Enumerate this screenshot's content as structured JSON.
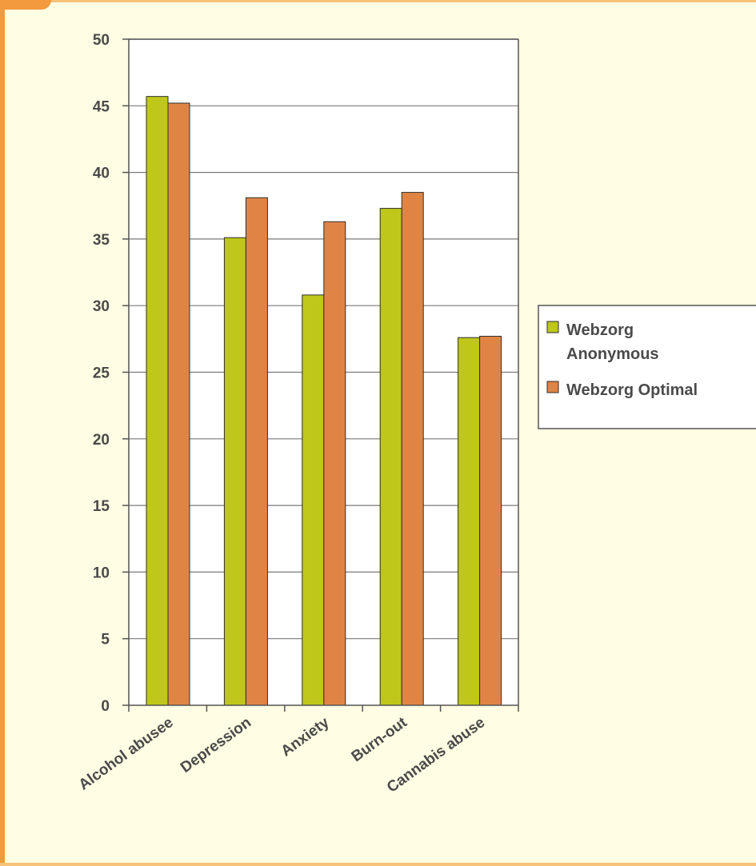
{
  "colors": {
    "background": "#fffde3",
    "frame_accent": "#f29a3d",
    "series_1": "#bfc71a",
    "series_2": "#df8445",
    "axis": "#555555"
  },
  "chart_data": {
    "type": "bar",
    "title": "",
    "xlabel": "",
    "ylabel": "",
    "categories": [
      "Alcohol abusee",
      "Depression",
      "Anxiety",
      "Burn-out",
      "Cannabis abuse"
    ],
    "series": [
      {
        "name": "Webzorg Anonymous",
        "legend_lines": [
          "Webzorg",
          "Anonymous"
        ],
        "color": "#bfc71a",
        "values": [
          45.7,
          35.1,
          30.8,
          37.3,
          27.6
        ]
      },
      {
        "name": "Webzorg Optimal",
        "legend_lines": [
          "Webzorg Optimal"
        ],
        "color": "#df8445",
        "values": [
          45.2,
          38.1,
          36.3,
          38.5,
          27.7
        ]
      }
    ],
    "ylim": [
      0,
      50
    ],
    "yticks": [
      "0",
      "5",
      "10",
      "15",
      "20",
      "25",
      "30",
      "35",
      "40",
      "45",
      "50"
    ],
    "grid": true,
    "legend_position": "right"
  }
}
